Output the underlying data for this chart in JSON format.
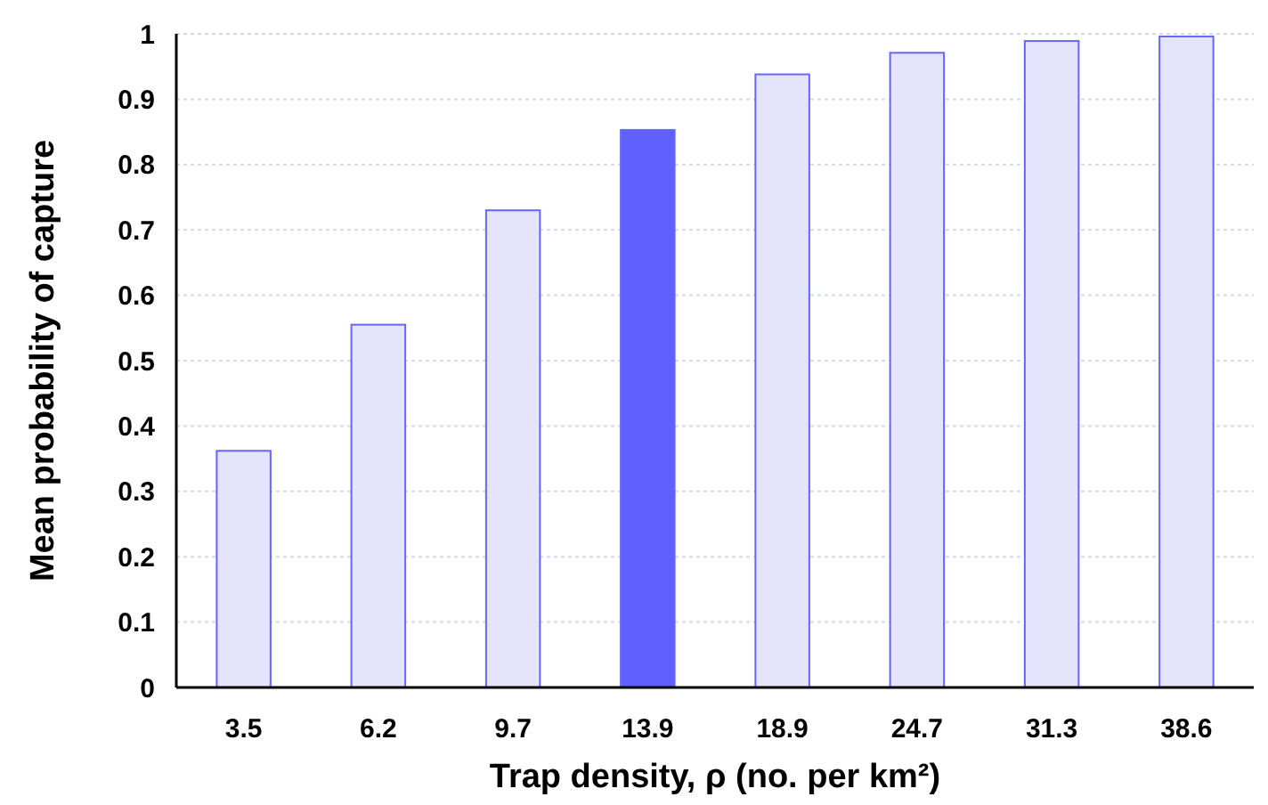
{
  "chart_data": {
    "type": "bar",
    "xlabel": "Trap density, ρ (no. per km²)",
    "ylabel": "Mean probability of capture",
    "categories": [
      "3.5",
      "6.2",
      "9.7",
      "13.9",
      "18.9",
      "24.7",
      "31.3",
      "38.6"
    ],
    "values": [
      0.362,
      0.555,
      0.73,
      0.853,
      0.938,
      0.971,
      0.989,
      0.996
    ],
    "colors": [
      "#e4e4fc",
      "#e4e4fc",
      "#e4e4fc",
      "#6060ff",
      "#e4e4fc",
      "#e4e4fc",
      "#e4e4fc",
      "#e4e4fc"
    ],
    "ylim": [
      0,
      1
    ],
    "yticks": [
      0,
      0.1,
      0.2,
      0.3,
      0.4,
      0.5,
      0.6,
      0.7,
      0.8,
      0.9,
      1
    ],
    "grid": "y"
  }
}
